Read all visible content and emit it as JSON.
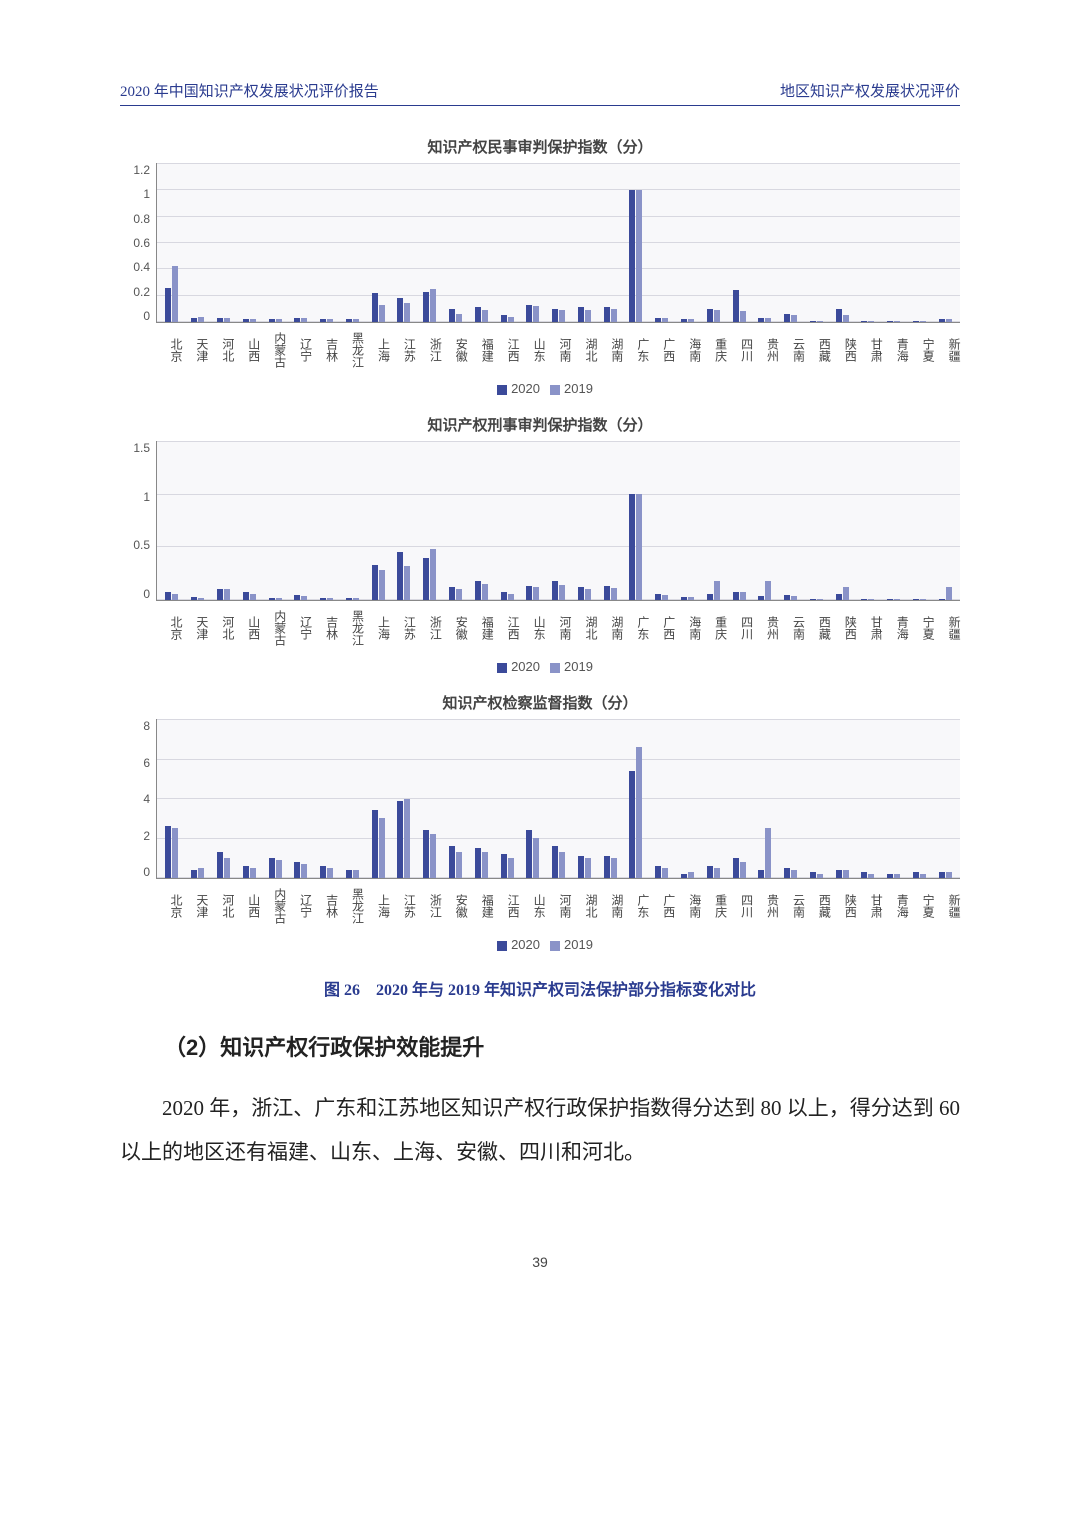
{
  "header": {
    "left": "2020 年中国知识产权发展状况评价报告",
    "right": "地区知识产权发展状况评价"
  },
  "colors": {
    "series_2020": "#3b4a9a",
    "series_2019": "#8a93c8",
    "grid": "#d8d8e0",
    "axis": "#888888",
    "plot_bg": "#f8f8fa"
  },
  "provinces": [
    "北京",
    "天津",
    "河北",
    "山西",
    "内蒙古",
    "辽宁",
    "吉林",
    "黑龙江",
    "上海",
    "江苏",
    "浙江",
    "安徽",
    "福建",
    "江西",
    "山东",
    "河南",
    "湖北",
    "湖南",
    "广东",
    "广西",
    "海南",
    "重庆",
    "四川",
    "贵州",
    "云南",
    "西藏",
    "陕西",
    "甘肃",
    "青海",
    "宁夏",
    "新疆"
  ],
  "legend": {
    "s1": "2020",
    "s2": "2019"
  },
  "charts": [
    {
      "title": "知识产权民事审判保护指数（分）",
      "ymax": 1.2,
      "yticks": [
        "1.2",
        "1",
        "0.8",
        "0.6",
        "0.4",
        "0.2",
        "0"
      ],
      "v2020": [
        0.26,
        0.03,
        0.03,
        0.02,
        0.02,
        0.03,
        0.02,
        0.02,
        0.22,
        0.18,
        0.23,
        0.1,
        0.11,
        0.05,
        0.13,
        0.1,
        0.11,
        0.11,
        1.0,
        0.03,
        0.02,
        0.1,
        0.24,
        0.03,
        0.06,
        0.01,
        0.1,
        0.01,
        0.01,
        0.01,
        0.02
      ],
      "v2019": [
        0.42,
        0.04,
        0.03,
        0.02,
        0.02,
        0.03,
        0.02,
        0.02,
        0.13,
        0.14,
        0.25,
        0.06,
        0.09,
        0.04,
        0.12,
        0.09,
        0.09,
        0.1,
        1.0,
        0.03,
        0.02,
        0.09,
        0.08,
        0.03,
        0.05,
        0.01,
        0.05,
        0.01,
        0.01,
        0.01,
        0.02
      ]
    },
    {
      "title": "知识产权刑事审判保护指数（分）",
      "ymax": 1.5,
      "yticks": [
        "1.5",
        "1",
        "0.5",
        "0"
      ],
      "v2020": [
        0.08,
        0.03,
        0.1,
        0.08,
        0.02,
        0.05,
        0.02,
        0.02,
        0.33,
        0.45,
        0.4,
        0.12,
        0.18,
        0.08,
        0.13,
        0.18,
        0.12,
        0.13,
        1.0,
        0.06,
        0.03,
        0.06,
        0.08,
        0.04,
        0.05,
        0.005,
        0.06,
        0.005,
        0.005,
        0.005,
        0.01
      ],
      "v2019": [
        0.06,
        0.02,
        0.1,
        0.06,
        0.02,
        0.04,
        0.02,
        0.02,
        0.28,
        0.32,
        0.48,
        0.1,
        0.15,
        0.06,
        0.12,
        0.14,
        0.1,
        0.11,
        1.0,
        0.05,
        0.03,
        0.18,
        0.08,
        0.18,
        0.04,
        0.005,
        0.12,
        0.005,
        0.005,
        0.005,
        0.12
      ]
    },
    {
      "title": "知识产权检察监督指数（分）",
      "ymax": 8,
      "yticks": [
        "8",
        "6",
        "4",
        "2",
        "0"
      ],
      "v2020": [
        2.6,
        0.4,
        1.3,
        0.6,
        1.0,
        0.8,
        0.6,
        0.4,
        3.4,
        3.9,
        2.4,
        1.6,
        1.5,
        1.2,
        2.4,
        1.6,
        1.1,
        1.1,
        5.4,
        0.6,
        0.2,
        0.6,
        1.0,
        0.4,
        0.5,
        0.3,
        0.4,
        0.3,
        0.2,
        0.3,
        0.3
      ],
      "v2019": [
        2.5,
        0.5,
        1.0,
        0.5,
        0.9,
        0.7,
        0.5,
        0.4,
        3.0,
        4.0,
        2.2,
        1.3,
        1.3,
        1.0,
        2.0,
        1.3,
        1.0,
        1.0,
        6.6,
        0.5,
        0.3,
        0.5,
        0.8,
        2.5,
        0.4,
        0.2,
        0.4,
        0.2,
        0.2,
        0.2,
        0.3
      ]
    }
  ],
  "figure_caption": "图 26　2020 年与 2019 年知识产权司法保护部分指标变化对比",
  "section_heading": "（2）知识产权行政保护效能提升",
  "body_text": "2020 年，浙江、广东和江苏地区知识产权行政保护指数得分达到 80 以上，得分达到 60 以上的地区还有福建、山东、上海、安徽、四川和河北。",
  "page_number": "39"
}
